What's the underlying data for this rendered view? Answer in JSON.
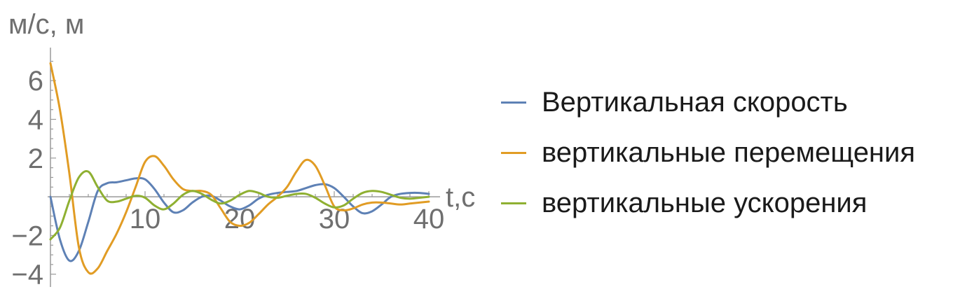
{
  "chart_data": {
    "type": "line",
    "ylabel": "м/с, м",
    "xlabel": "t,c",
    "xlim": [
      0,
      40
    ],
    "ylim": [
      -4.3,
      7.2
    ],
    "x_ticks": [
      "10",
      "20",
      "30",
      "40"
    ],
    "y_ticks": [
      "−4",
      "−2",
      "2",
      "4",
      "6"
    ],
    "x_tick_values": [
      10,
      20,
      30,
      40
    ],
    "y_tick_values": [
      -4,
      -2,
      2,
      4,
      6
    ],
    "legend_position": "right",
    "series": [
      {
        "name": "Вертикальная скорость",
        "color": "#5e81b5",
        "x": [
          0,
          1,
          2,
          3,
          4,
          5,
          6,
          7,
          8,
          9,
          10,
          11,
          12,
          13,
          14,
          15,
          16,
          17,
          18,
          19,
          20,
          21,
          22,
          23,
          24,
          25,
          26,
          27,
          28,
          29,
          30,
          31,
          32,
          33,
          34,
          35,
          36,
          37,
          38,
          39,
          40
        ],
        "values": [
          0,
          -2.2,
          -3.3,
          -2.8,
          -1.3,
          0.3,
          0.7,
          0.75,
          0.85,
          0.95,
          0.9,
          0.4,
          -0.3,
          -0.8,
          -0.7,
          -0.3,
          0.0,
          0.05,
          -0.2,
          -0.5,
          -0.65,
          -0.45,
          -0.1,
          0.1,
          0.2,
          0.25,
          0.3,
          0.45,
          0.6,
          0.65,
          0.45,
          0.0,
          -0.5,
          -0.85,
          -0.75,
          -0.4,
          0.0,
          0.15,
          0.2,
          0.2,
          0.15
        ]
      },
      {
        "name": "вертикальные перемещения",
        "color": "#e19c24",
        "x": [
          0,
          1,
          2,
          3,
          4,
          5,
          6,
          7,
          8,
          9,
          10,
          11,
          12,
          13,
          14,
          15,
          16,
          17,
          18,
          19,
          20,
          21,
          22,
          23,
          24,
          25,
          26,
          27,
          28,
          29,
          30,
          31,
          32,
          33,
          34,
          35,
          36,
          37,
          38,
          39,
          40
        ],
        "values": [
          6.9,
          4.5,
          1.2,
          -2.6,
          -3.9,
          -3.7,
          -2.8,
          -1.9,
          -0.8,
          0.5,
          1.8,
          2.1,
          1.6,
          0.9,
          0.4,
          0.3,
          0.3,
          0.1,
          -0.6,
          -1.3,
          -1.5,
          -1.35,
          -0.9,
          -0.4,
          0.0,
          0.5,
          1.3,
          1.9,
          1.6,
          0.6,
          -0.5,
          -0.7,
          -0.6,
          -0.4,
          -0.3,
          -0.3,
          -0.35,
          -0.4,
          -0.35,
          -0.3,
          -0.25
        ]
      },
      {
        "name": "вертикальные ускорения",
        "color": "#8fb032",
        "x": [
          0,
          1,
          2,
          3,
          4,
          5,
          6,
          7,
          8,
          9,
          10,
          11,
          12,
          13,
          14,
          15,
          16,
          17,
          18,
          19,
          20,
          21,
          22,
          23,
          24,
          25,
          26,
          27,
          28,
          29,
          30,
          31,
          32,
          33,
          34,
          35,
          36,
          37,
          38,
          39,
          40
        ],
        "values": [
          -2.2,
          -1.6,
          -0.2,
          1.0,
          1.3,
          0.5,
          -0.2,
          -0.25,
          -0.1,
          0.05,
          -0.05,
          -0.45,
          -0.65,
          -0.35,
          0.1,
          0.3,
          0.15,
          -0.15,
          -0.35,
          -0.2,
          0.1,
          0.3,
          0.2,
          0.0,
          -0.05,
          0.05,
          0.15,
          0.15,
          -0.05,
          -0.35,
          -0.55,
          -0.45,
          -0.1,
          0.2,
          0.3,
          0.25,
          0.1,
          -0.05,
          -0.1,
          -0.05,
          0.0
        ]
      }
    ]
  }
}
